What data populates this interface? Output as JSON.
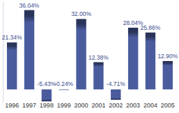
{
  "chart_data": {
    "type": "bar",
    "categories": [
      "1996",
      "1997",
      "1998",
      "1999",
      "2000",
      "2001",
      "2002",
      "2003",
      "2004",
      "2005"
    ],
    "values": [
      21.34,
      36.04,
      -5.43,
      -0.24,
      32.0,
      12.38,
      -4.71,
      28.04,
      25.86,
      12.9
    ],
    "value_labels": [
      "21.34%",
      "36.04%",
      "-5.43%",
      "-0.24%",
      "32.00%",
      "12.38%",
      "-4.71%",
      "28.04%",
      "25.86%",
      "12.90%"
    ],
    "color": "#4b5c9e",
    "ylim": [
      -6,
      40
    ],
    "data_labels": true,
    "tick_labels": "x",
    "grid": false
  }
}
